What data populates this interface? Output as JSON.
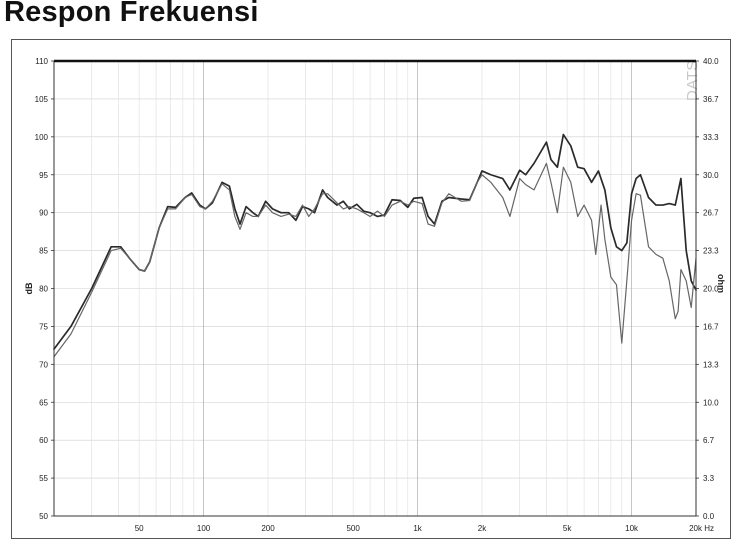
{
  "page": {
    "title": "Respon Frekuensi"
  },
  "chart_data": {
    "type": "line",
    "title": "Respon Frekuensi",
    "xlabel": "",
    "x_unit_label": "20k Hz",
    "ylabel": "dB",
    "y2label": "ohm",
    "watermark": "DATS",
    "x_scale": "log",
    "xlim": [
      20,
      20000
    ],
    "ylim": [
      50,
      110
    ],
    "y2lim": [
      0,
      40
    ],
    "grid": true,
    "legend": "none",
    "x_ticks": [
      {
        "value": 50,
        "label": "50"
      },
      {
        "value": 100,
        "label": "100"
      },
      {
        "value": 200,
        "label": "200"
      },
      {
        "value": 500,
        "label": "500"
      },
      {
        "value": 1000,
        "label": "1k"
      },
      {
        "value": 2000,
        "label": "2k"
      },
      {
        "value": 5000,
        "label": "5k"
      },
      {
        "value": 10000,
        "label": "10k"
      }
    ],
    "y_ticks": [
      "50",
      "55",
      "60",
      "65",
      "70",
      "75",
      "80",
      "85",
      "90",
      "95",
      "100",
      "105",
      "110"
    ],
    "y2_ticks": [
      "0.0",
      "3.3",
      "6.7",
      "10.0",
      "13.3",
      "16.7",
      "20.0",
      "23.3",
      "26.7",
      "30.0",
      "33.3",
      "36.7",
      "40.0"
    ],
    "series": [
      {
        "color": "#2a2a2a",
        "width": 1.7,
        "points": [
          [
            20,
            72
          ],
          [
            24,
            75
          ],
          [
            30,
            80
          ],
          [
            37,
            85.5
          ],
          [
            41,
            85.5
          ],
          [
            45,
            84
          ],
          [
            50,
            82.5
          ],
          [
            53,
            82.3
          ],
          [
            56,
            83.5
          ],
          [
            62,
            88
          ],
          [
            68,
            90.8
          ],
          [
            74,
            90.7
          ],
          [
            82,
            92
          ],
          [
            88,
            92.6
          ],
          [
            96,
            91
          ],
          [
            102,
            90.5
          ],
          [
            110,
            91.3
          ],
          [
            122,
            94
          ],
          [
            132,
            93.5
          ],
          [
            140,
            90.5
          ],
          [
            148,
            88.5
          ],
          [
            158,
            90.8
          ],
          [
            170,
            90
          ],
          [
            180,
            89.5
          ],
          [
            195,
            91.5
          ],
          [
            210,
            90.5
          ],
          [
            230,
            90
          ],
          [
            250,
            90
          ],
          [
            270,
            89
          ],
          [
            290,
            90.8
          ],
          [
            310,
            90.5
          ],
          [
            330,
            90
          ],
          [
            360,
            93
          ],
          [
            380,
            92
          ],
          [
            420,
            91
          ],
          [
            450,
            91.5
          ],
          [
            480,
            90.5
          ],
          [
            520,
            91.1
          ],
          [
            560,
            90.2
          ],
          [
            600,
            90
          ],
          [
            650,
            89.5
          ],
          [
            700,
            89.7
          ],
          [
            760,
            91.7
          ],
          [
            830,
            91.6
          ],
          [
            900,
            90.7
          ],
          [
            960,
            91.9
          ],
          [
            1050,
            92
          ],
          [
            1120,
            89.5
          ],
          [
            1200,
            88.5
          ],
          [
            1300,
            91.5
          ],
          [
            1400,
            92
          ],
          [
            1600,
            91.8
          ],
          [
            1750,
            91.7
          ],
          [
            1900,
            94
          ],
          [
            2000,
            95.5
          ],
          [
            2200,
            95
          ],
          [
            2500,
            94.5
          ],
          [
            2700,
            93
          ],
          [
            3000,
            95.6
          ],
          [
            3200,
            95
          ],
          [
            3500,
            96.5
          ],
          [
            4000,
            99.3
          ],
          [
            4200,
            97
          ],
          [
            4500,
            96
          ],
          [
            4800,
            100.3
          ],
          [
            5200,
            98.8
          ],
          [
            5600,
            96
          ],
          [
            6000,
            95.8
          ],
          [
            6500,
            94
          ],
          [
            7000,
            95.5
          ],
          [
            7500,
            93
          ],
          [
            8000,
            88
          ],
          [
            8500,
            85.5
          ],
          [
            9000,
            85
          ],
          [
            9500,
            86
          ],
          [
            10000,
            92.5
          ],
          [
            10500,
            94.5
          ],
          [
            11000,
            95
          ],
          [
            12000,
            92
          ],
          [
            13000,
            91
          ],
          [
            14000,
            91
          ],
          [
            15000,
            91.2
          ],
          [
            16000,
            91
          ],
          [
            17000,
            94.5
          ],
          [
            18000,
            85
          ],
          [
            19000,
            81
          ],
          [
            20000,
            79.8
          ]
        ]
      },
      {
        "color": "#666666",
        "width": 1.2,
        "points": [
          [
            20,
            71
          ],
          [
            24,
            74
          ],
          [
            30,
            79.5
          ],
          [
            37,
            85
          ],
          [
            41,
            85.3
          ],
          [
            45,
            84
          ],
          [
            50,
            82.5
          ],
          [
            53,
            82.3
          ],
          [
            56,
            83.5
          ],
          [
            62,
            88
          ],
          [
            68,
            90.5
          ],
          [
            74,
            90.5
          ],
          [
            82,
            92
          ],
          [
            88,
            92.4
          ],
          [
            96,
            90.8
          ],
          [
            102,
            90.5
          ],
          [
            110,
            91.5
          ],
          [
            122,
            93.8
          ],
          [
            132,
            93
          ],
          [
            140,
            89.5
          ],
          [
            148,
            87.8
          ],
          [
            158,
            90
          ],
          [
            170,
            89.5
          ],
          [
            180,
            89.5
          ],
          [
            195,
            91
          ],
          [
            210,
            90
          ],
          [
            230,
            89.5
          ],
          [
            250,
            89.8
          ],
          [
            270,
            89.5
          ],
          [
            290,
            91
          ],
          [
            310,
            89.5
          ],
          [
            330,
            90.5
          ],
          [
            360,
            92.5
          ],
          [
            380,
            92.5
          ],
          [
            420,
            91.3
          ],
          [
            450,
            90.5
          ],
          [
            480,
            90.8
          ],
          [
            520,
            90.5
          ],
          [
            560,
            90
          ],
          [
            600,
            89.5
          ],
          [
            650,
            90.2
          ],
          [
            700,
            89.5
          ],
          [
            760,
            91
          ],
          [
            830,
            91.5
          ],
          [
            900,
            91
          ],
          [
            960,
            91.5
          ],
          [
            1050,
            91.2
          ],
          [
            1120,
            88.5
          ],
          [
            1200,
            88.2
          ],
          [
            1300,
            91.3
          ],
          [
            1400,
            92.5
          ],
          [
            1600,
            91.5
          ],
          [
            1750,
            91.6
          ],
          [
            1900,
            94
          ],
          [
            2000,
            95
          ],
          [
            2200,
            94
          ],
          [
            2500,
            92
          ],
          [
            2700,
            89.5
          ],
          [
            3000,
            94.5
          ],
          [
            3200,
            93.7
          ],
          [
            3500,
            93
          ],
          [
            4000,
            96.5
          ],
          [
            4200,
            94
          ],
          [
            4500,
            90
          ],
          [
            4800,
            96
          ],
          [
            5200,
            94
          ],
          [
            5600,
            89.5
          ],
          [
            6000,
            91
          ],
          [
            6500,
            89
          ],
          [
            6800,
            84.5
          ],
          [
            7200,
            91
          ],
          [
            7500,
            86.5
          ],
          [
            8000,
            81.5
          ],
          [
            8500,
            80.5
          ],
          [
            9000,
            72.8
          ],
          [
            9500,
            81
          ],
          [
            10000,
            89
          ],
          [
            10500,
            92.5
          ],
          [
            11000,
            92.3
          ],
          [
            12000,
            85.5
          ],
          [
            13000,
            84.5
          ],
          [
            14000,
            84
          ],
          [
            15000,
            81
          ],
          [
            16000,
            76
          ],
          [
            16500,
            77
          ],
          [
            17000,
            82.5
          ],
          [
            18000,
            81
          ],
          [
            19000,
            77.5
          ],
          [
            20000,
            84
          ]
        ]
      }
    ]
  }
}
